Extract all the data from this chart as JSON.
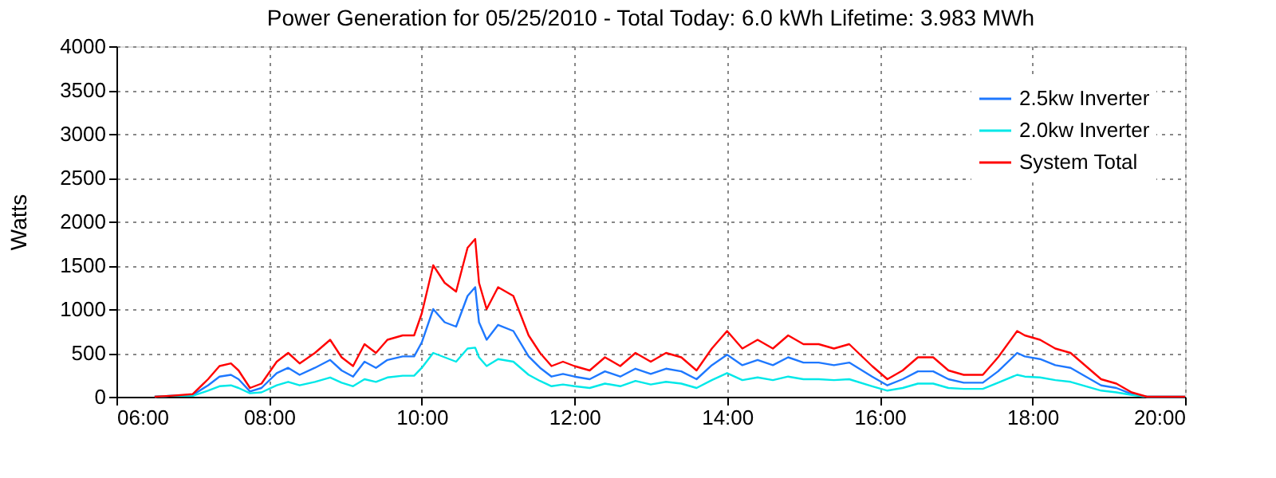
{
  "chart_data": {
    "type": "line",
    "title": "Power Generation for 05/25/2010 - Total Today: 6.0 kWh   Lifetime: 3.983 MWh",
    "ylabel": "Watts",
    "x": [
      6.5,
      6.7,
      7.0,
      7.2,
      7.35,
      7.5,
      7.6,
      7.75,
      7.9,
      8.1,
      8.25,
      8.4,
      8.6,
      8.8,
      8.95,
      9.1,
      9.25,
      9.4,
      9.55,
      9.75,
      9.9,
      10.0,
      10.15,
      10.3,
      10.45,
      10.6,
      10.7,
      10.75,
      10.85,
      11.0,
      11.2,
      11.4,
      11.55,
      11.7,
      11.85,
      12.0,
      12.2,
      12.4,
      12.6,
      12.8,
      13.0,
      13.2,
      13.4,
      13.6,
      13.8,
      14.0,
      14.2,
      14.4,
      14.6,
      14.8,
      15.0,
      15.2,
      15.4,
      15.6,
      15.9,
      16.1,
      16.3,
      16.5,
      16.7,
      16.9,
      17.1,
      17.35,
      17.55,
      17.8,
      17.9,
      18.1,
      18.3,
      18.5,
      18.7,
      18.9,
      19.1,
      19.3,
      19.5,
      20.0
    ],
    "series": [
      {
        "name": "2.5kw Inverter",
        "color": "#1e78ff",
        "values": [
          0,
          10,
          20,
          130,
          230,
          250,
          200,
          60,
          100,
          270,
          330,
          250,
          330,
          420,
          300,
          230,
          400,
          330,
          420,
          460,
          460,
          620,
          1000,
          850,
          800,
          1150,
          1250,
          850,
          650,
          820,
          750,
          460,
          330,
          230,
          260,
          230,
          200,
          290,
          230,
          320,
          260,
          320,
          290,
          200,
          360,
          480,
          360,
          420,
          360,
          450,
          390,
          390,
          360,
          390,
          230,
          130,
          200,
          290,
          290,
          200,
          160,
          160,
          290,
          500,
          460,
          430,
          360,
          330,
          230,
          130,
          100,
          30,
          0,
          0
        ]
      },
      {
        "name": "2.0kw Inverter",
        "color": "#00e8e8",
        "values": [
          0,
          10,
          10,
          70,
          120,
          130,
          100,
          40,
          50,
          130,
          170,
          130,
          170,
          220,
          160,
          120,
          200,
          170,
          220,
          240,
          240,
          330,
          500,
          450,
          400,
          550,
          560,
          450,
          350,
          430,
          400,
          250,
          180,
          120,
          140,
          120,
          100,
          150,
          120,
          180,
          140,
          170,
          150,
          100,
          190,
          270,
          190,
          220,
          190,
          230,
          200,
          200,
          190,
          200,
          120,
          70,
          100,
          150,
          150,
          100,
          90,
          90,
          160,
          250,
          230,
          220,
          190,
          170,
          120,
          70,
          50,
          20,
          0,
          0
        ]
      },
      {
        "name": "System Total",
        "color": "#ff0000",
        "values": [
          0,
          10,
          30,
          200,
          350,
          380,
          300,
          100,
          150,
          400,
          500,
          380,
          500,
          650,
          450,
          350,
          600,
          500,
          650,
          700,
          700,
          950,
          1500,
          1300,
          1200,
          1700,
          1800,
          1300,
          1000,
          1250,
          1150,
          700,
          500,
          350,
          400,
          350,
          300,
          450,
          350,
          500,
          400,
          500,
          450,
          300,
          550,
          750,
          550,
          650,
          550,
          700,
          600,
          600,
          550,
          600,
          350,
          200,
          300,
          450,
          450,
          300,
          250,
          250,
          450,
          750,
          700,
          650,
          550,
          500,
          350,
          200,
          150,
          50,
          0,
          0
        ]
      }
    ],
    "xlim": [
      6,
      20
    ],
    "xticks": [
      {
        "value": 6,
        "label": "06:00"
      },
      {
        "value": 8,
        "label": "08:00"
      },
      {
        "value": 10,
        "label": "10:00"
      },
      {
        "value": 12,
        "label": "12:00"
      },
      {
        "value": 14,
        "label": "14:00"
      },
      {
        "value": 16,
        "label": "16:00"
      },
      {
        "value": 18,
        "label": "18:00"
      },
      {
        "value": 20,
        "label": "20:00"
      }
    ],
    "ylim": [
      0,
      4000
    ],
    "yticks": [
      0,
      500,
      1000,
      1500,
      2000,
      2500,
      3000,
      3500,
      4000
    ],
    "grid": true,
    "legend": "top right",
    "marker": "none",
    "line_style": "solid"
  }
}
